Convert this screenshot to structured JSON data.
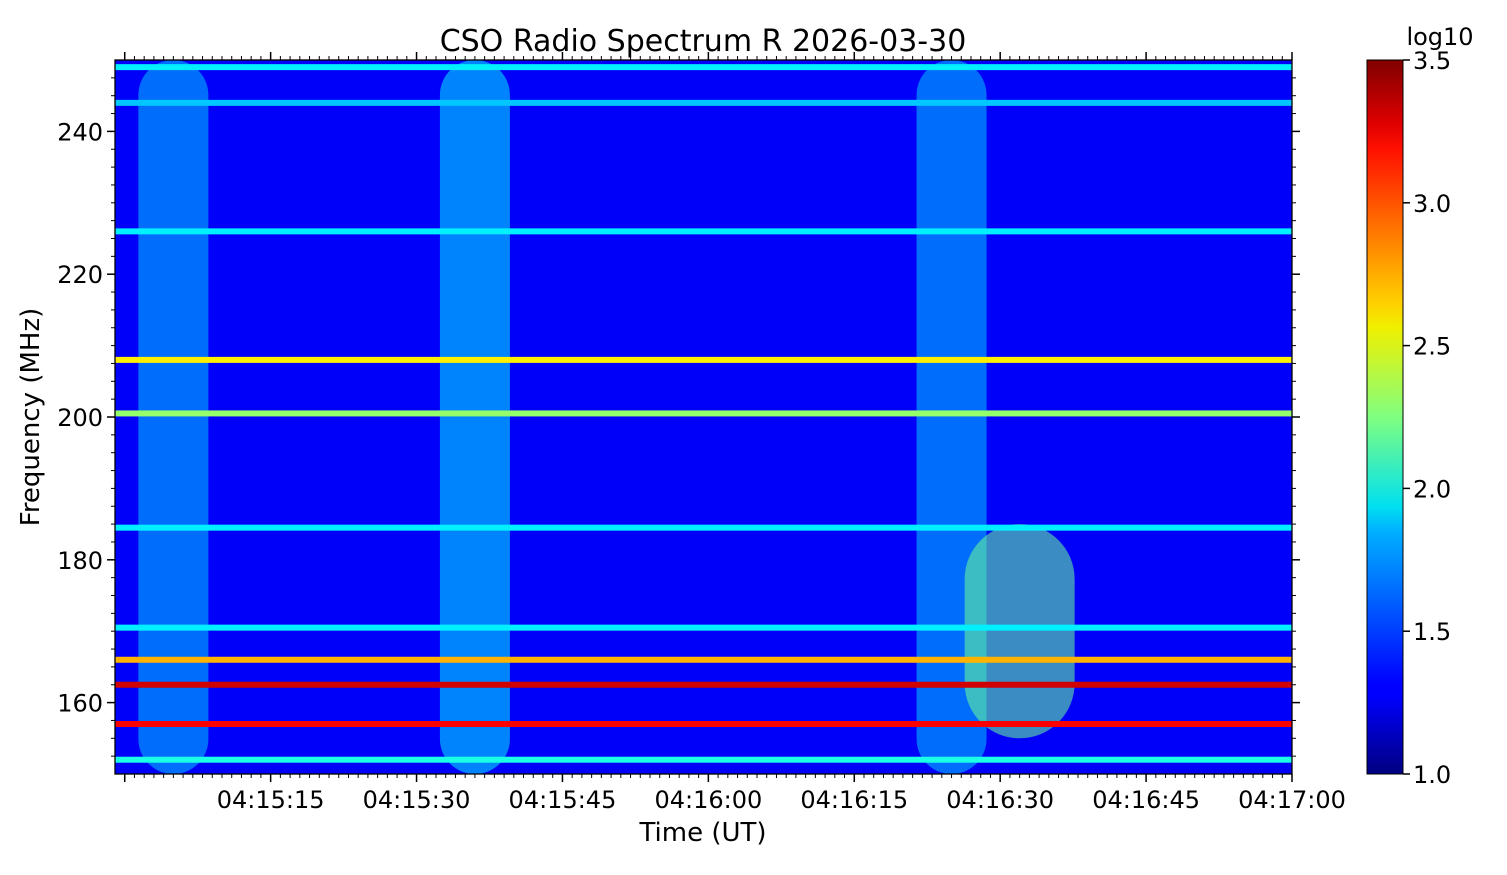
{
  "chart_data": {
    "type": "heatmap",
    "title": "CSO Radio Spectrum R 2026-03-30",
    "xlabel": "Time (UT)",
    "ylabel": "Frequency (MHz)",
    "x_range": [
      "04:14:59",
      "04:17:00"
    ],
    "ylim": [
      150,
      250
    ],
    "x_ticks": [
      "04:15:15",
      "04:15:30",
      "04:15:45",
      "04:16:00",
      "04:16:15",
      "04:16:30",
      "04:16:45",
      "04:17:00"
    ],
    "y_ticks": [
      160,
      180,
      200,
      220,
      240
    ],
    "colorbar": {
      "label": "log10",
      "range": [
        1.0,
        3.5
      ],
      "ticks": [
        "1.0",
        "1.5",
        "2.0",
        "2.5",
        "3.0",
        "3.5"
      ],
      "colormap": "jet"
    },
    "background_level": 1.3,
    "horizontal_bands": [
      {
        "freq_mhz": 208,
        "log10": 2.6
      },
      {
        "freq_mhz": 200.5,
        "log10": 2.3
      },
      {
        "freq_mhz": 166,
        "log10": 2.75
      },
      {
        "freq_mhz": 162.5,
        "log10": 3.3
      },
      {
        "freq_mhz": 157,
        "log10": 3.2
      },
      {
        "freq_mhz": 184.5,
        "log10": 1.9
      },
      {
        "freq_mhz": 170.5,
        "log10": 1.9
      },
      {
        "freq_mhz": 152,
        "log10": 2.0
      },
      {
        "freq_mhz": 226,
        "log10": 1.9
      },
      {
        "freq_mhz": 244,
        "log10": 1.8
      },
      {
        "freq_mhz": 249,
        "log10": 1.9
      }
    ],
    "emission_features": [
      {
        "time": "04:15:05",
        "freq_range_mhz": [
          150,
          250
        ],
        "peak_log10": 1.8
      },
      {
        "time": "04:15:36",
        "freq_range_mhz": [
          150,
          250
        ],
        "peak_log10": 1.9
      },
      {
        "time": "04:16:25",
        "freq_range_mhz": [
          150,
          250
        ],
        "peak_log10": 1.8
      },
      {
        "time": "04:16:32",
        "freq_range_mhz": [
          155,
          185
        ],
        "peak_log10": 2.2
      }
    ]
  }
}
